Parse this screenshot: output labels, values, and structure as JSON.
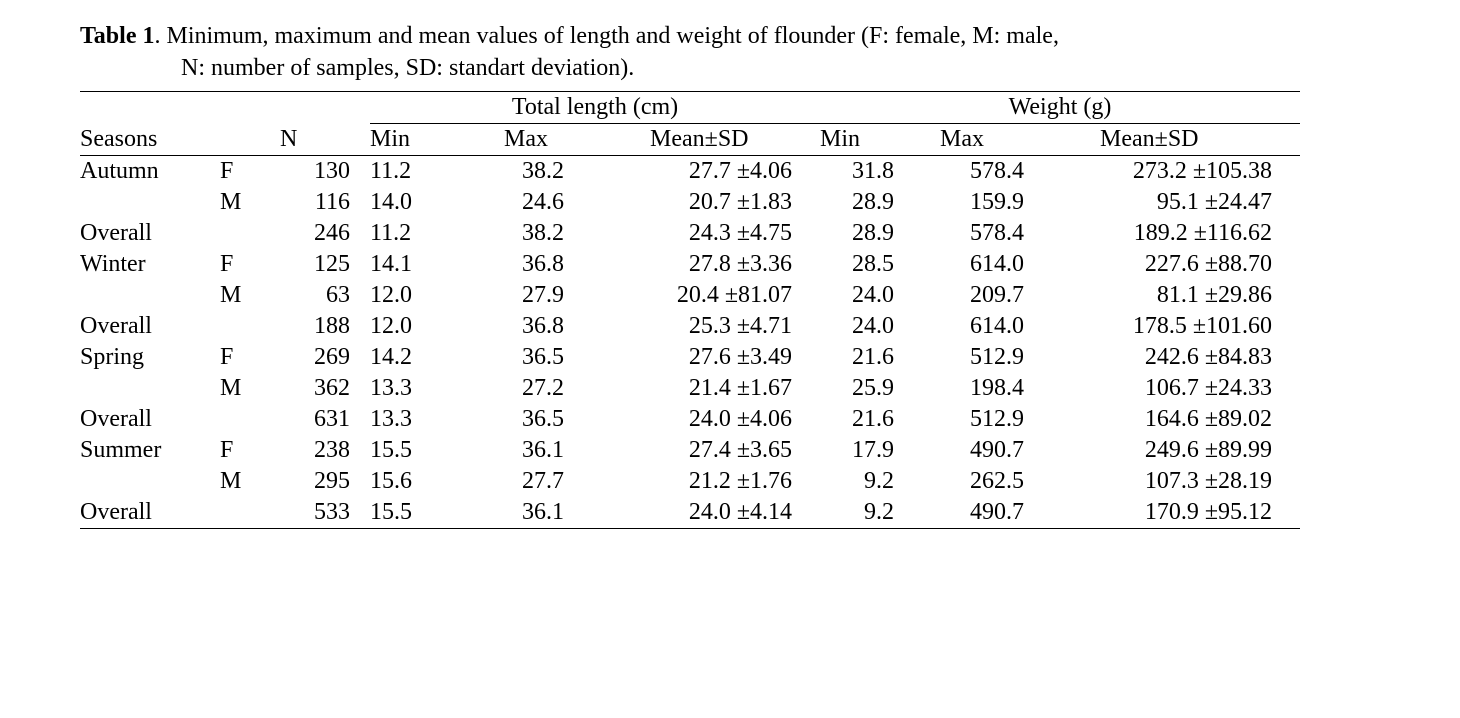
{
  "caption": {
    "label": "Table 1",
    "text_line1": ". Minimum, maximum and mean values of length and weight of flounder (F: female, M: male,",
    "text_line2": "N: number of samples, SD: standart deviation)."
  },
  "headers": {
    "seasons": "Seasons",
    "sex": "",
    "n": "N",
    "length_group": "Total length (cm)",
    "weight_group": "Weight (g)",
    "min": "Min",
    "max": "Max",
    "mean_sd": "Mean±SD"
  },
  "rows": [
    {
      "season": "Autumn",
      "sex": "F",
      "n": "130",
      "lmin": "11.2",
      "lmax": "38.2",
      "lmean": "27.7 ±4.06",
      "wmin": "31.8",
      "wmax": "578.4",
      "wmean": "273.2 ±105.38"
    },
    {
      "season": "",
      "sex": "M",
      "n": "116",
      "lmin": "14.0",
      "lmax": "24.6",
      "lmean": "20.7 ±1.83",
      "wmin": "28.9",
      "wmax": "159.9",
      "wmean": "95.1 ±24.47"
    },
    {
      "season": "Overall",
      "sex": "",
      "n": "246",
      "lmin": "11.2",
      "lmax": "38.2",
      "lmean": "24.3 ±4.75",
      "wmin": "28.9",
      "wmax": "578.4",
      "wmean": "189.2 ±116.62"
    },
    {
      "season": "Winter",
      "sex": "F",
      "n": "125",
      "lmin": "14.1",
      "lmax": "36.8",
      "lmean": "27.8 ±3.36",
      "wmin": "28.5",
      "wmax": "614.0",
      "wmean": "227.6 ±88.70"
    },
    {
      "season": "",
      "sex": "M",
      "n": "63",
      "lmin": "12.0",
      "lmax": "27.9",
      "lmean": "20.4 ±81.07",
      "wmin": "24.0",
      "wmax": "209.7",
      "wmean": "81.1 ±29.86"
    },
    {
      "season": "Overall",
      "sex": "",
      "n": "188",
      "lmin": "12.0",
      "lmax": "36.8",
      "lmean": "25.3 ±4.71",
      "wmin": "24.0",
      "wmax": "614.0",
      "wmean": "178.5 ±101.60"
    },
    {
      "season": "Spring",
      "sex": "F",
      "n": "269",
      "lmin": "14.2",
      "lmax": "36.5",
      "lmean": "27.6 ±3.49",
      "wmin": "21.6",
      "wmax": "512.9",
      "wmean": "242.6 ±84.83"
    },
    {
      "season": "",
      "sex": "M",
      "n": "362",
      "lmin": "13.3",
      "lmax": "27.2",
      "lmean": "21.4 ±1.67",
      "wmin": "25.9",
      "wmax": "198.4",
      "wmean": "106.7 ±24.33"
    },
    {
      "season": "Overall",
      "sex": "",
      "n": "631",
      "lmin": "13.3",
      "lmax": "36.5",
      "lmean": "24.0 ±4.06",
      "wmin": "21.6",
      "wmax": "512.9",
      "wmean": "164.6 ±89.02"
    },
    {
      "season": "Summer",
      "sex": "F",
      "n": "238",
      "lmin": "15.5",
      "lmax": "36.1",
      "lmean": "27.4 ±3.65",
      "wmin": "17.9",
      "wmax": "490.7",
      "wmean": "249.6 ±89.99"
    },
    {
      "season": "",
      "sex": "M",
      "n": "295",
      "lmin": "15.6",
      "lmax": "27.7",
      "lmean": "21.2 ±1.76",
      "wmin": "9.2",
      "wmax": "262.5",
      "wmean": "107.3 ±28.19"
    },
    {
      "season": "Overall",
      "sex": "",
      "n": "533",
      "lmin": "15.5",
      "lmax": "36.1",
      "lmean": "24.0 ±4.14",
      "wmin": "9.2",
      "wmax": "490.7",
      "wmean": "170.9 ±95.12"
    }
  ]
}
